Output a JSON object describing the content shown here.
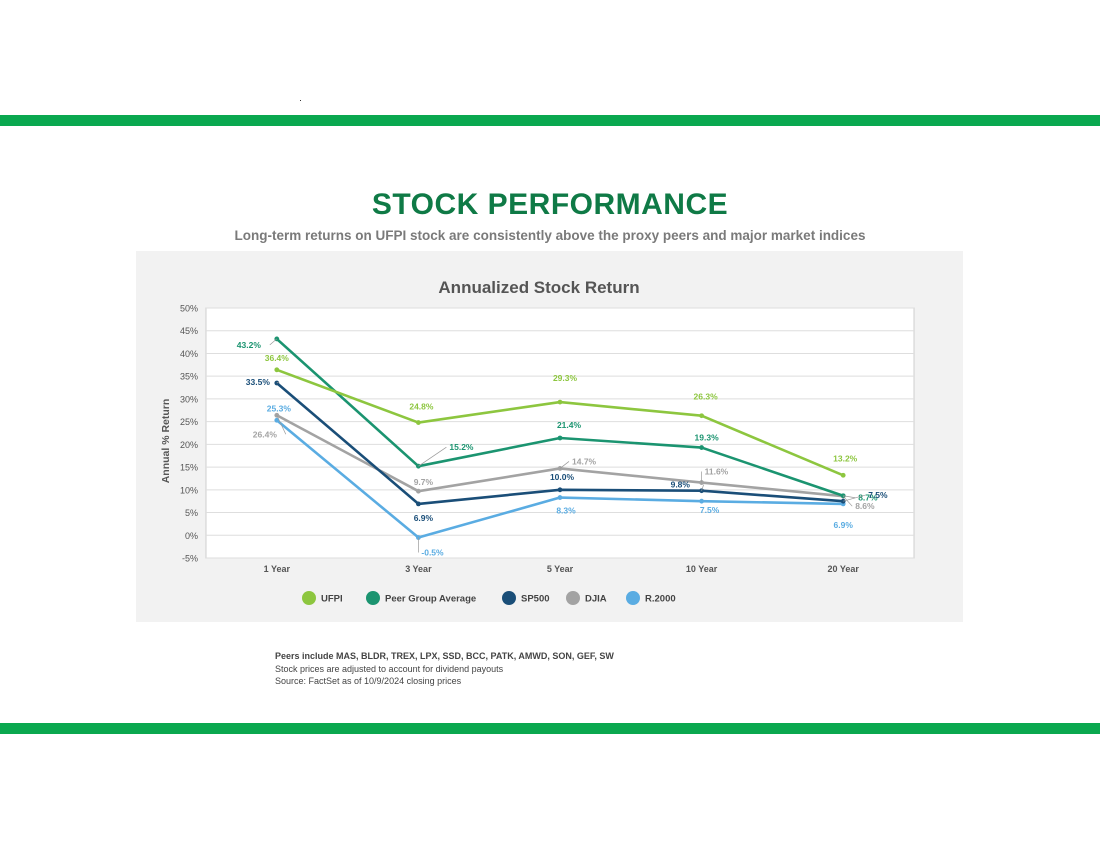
{
  "header": {
    "title": "STOCK PERFORMANCE",
    "subtitle": "Long-term returns on UFPI stock are consistently above the proxy peers and major market indices"
  },
  "colors": {
    "brand_green": "#0aa84f",
    "title_green": "#0f7a46",
    "panel_bg": "#f2f2f2"
  },
  "chart_data": {
    "type": "line",
    "title": "Annualized Stock Return",
    "xlabel": "",
    "ylabel": "Annual % Return",
    "categories": [
      "1 Year",
      "3 Year",
      "5 Year",
      "10 Year",
      "20 Year"
    ],
    "ylim": [
      -5,
      50
    ],
    "yticks": [
      -5,
      0,
      5,
      10,
      15,
      20,
      25,
      30,
      35,
      40,
      45,
      50
    ],
    "grid": true,
    "legend_position": "bottom",
    "series": [
      {
        "name": "UFPI",
        "color": "#8dc63f",
        "values": [
          36.4,
          24.8,
          29.3,
          26.3,
          13.2
        ],
        "labels": [
          "36.4%",
          "24.8%",
          "29.3%",
          "26.3%",
          "13.2%"
        ]
      },
      {
        "name": "Peer Group Average",
        "color": "#1b9470",
        "values": [
          43.2,
          15.2,
          21.4,
          19.3,
          8.7
        ],
        "labels": [
          "43.2%",
          "15.2%",
          "21.4%",
          "19.3%",
          "8.7%"
        ]
      },
      {
        "name": "SP500",
        "color": "#1a4e78",
        "values": [
          33.5,
          6.9,
          10.0,
          9.8,
          7.5
        ],
        "labels": [
          "33.5%",
          "6.9%",
          "10.0%",
          "9.8%",
          "7.5%"
        ]
      },
      {
        "name": "DJIA",
        "color": "#a3a3a3",
        "values": [
          26.4,
          9.7,
          14.7,
          11.6,
          8.6
        ],
        "labels": [
          "26.4%",
          "9.7%",
          "14.7%",
          "11.6%",
          "8.6%"
        ]
      },
      {
        "name": "R.2000",
        "color": "#5aace2",
        "values": [
          25.3,
          -0.5,
          8.3,
          7.5,
          6.9
        ],
        "labels": [
          "25.3%",
          "-0.5%",
          "8.3%",
          "7.5%",
          "6.9%"
        ]
      }
    ]
  },
  "footnotes": [
    "Peers include MAS, BLDR, TREX, LPX, SSD, BCC, PATK, AMWD, SON, GEF, SW",
    "Stock prices are adjusted to account for dividend payouts",
    "Source: FactSet as of 10/9/2024 closing prices"
  ]
}
